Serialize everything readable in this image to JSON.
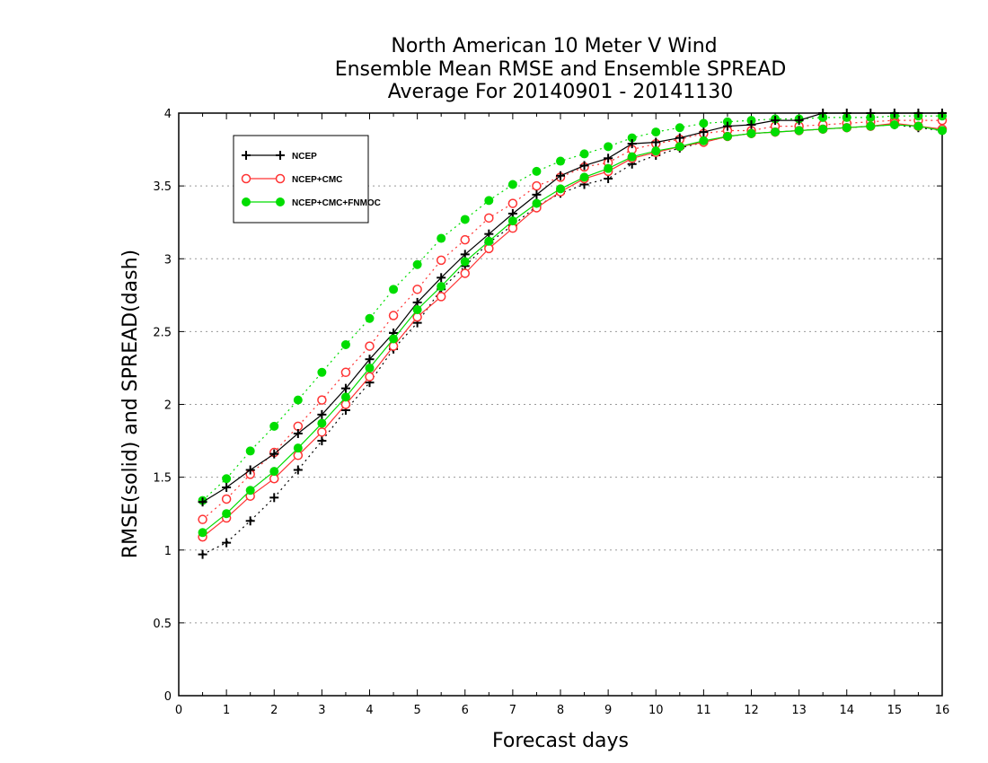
{
  "chart_data": {
    "type": "line",
    "title_lines": [
      "North American 10 Meter V Wind",
      "Ensemble Mean RMSE and Ensemble SPREAD",
      "Average For 20140901 - 20141130"
    ],
    "xlabel": "Forecast days",
    "ylabel": "RMSE(solid) and SPREAD(dash)",
    "xlim": [
      0,
      16
    ],
    "ylim": [
      0,
      4
    ],
    "xticks": [
      "0",
      "1",
      "2",
      "3",
      "4",
      "5",
      "6",
      "7",
      "8",
      "9",
      "10",
      "11",
      "12",
      "13",
      "14",
      "15",
      "16"
    ],
    "yticks": [
      "0",
      "0.5",
      "1",
      "1.5",
      "2",
      "2.5",
      "3",
      "3.5",
      "4"
    ],
    "grid": "horizontal-dotted",
    "legend_position": "top-left",
    "x": [
      0.5,
      1,
      1.5,
      2,
      2.5,
      3,
      3.5,
      4,
      4.5,
      5,
      5.5,
      6,
      6.5,
      7,
      7.5,
      8,
      8.5,
      9,
      9.5,
      10,
      10.5,
      11,
      11.5,
      12,
      12.5,
      13,
      13.5,
      14,
      14.5,
      15,
      15.5,
      16
    ],
    "series": [
      {
        "name": "NCEP",
        "color": "#000000",
        "marker": "plus",
        "rmse": [
          1.33,
          1.43,
          1.55,
          1.66,
          1.8,
          1.93,
          2.11,
          2.31,
          2.49,
          2.7,
          2.87,
          3.03,
          3.17,
          3.31,
          3.44,
          3.57,
          3.64,
          3.69,
          3.79,
          3.8,
          3.83,
          3.87,
          3.91,
          3.92,
          3.95,
          3.95,
          4.0,
          4.0,
          4.0,
          4.0,
          4.0,
          4.0
        ],
        "spread": [
          0.97,
          1.05,
          1.2,
          1.36,
          1.55,
          1.75,
          1.96,
          2.15,
          2.38,
          2.56,
          2.79,
          2.95,
          3.11,
          3.23,
          3.36,
          3.45,
          3.51,
          3.55,
          3.65,
          3.71,
          3.76,
          3.8,
          3.84,
          3.86,
          3.87,
          3.88,
          3.89,
          3.9,
          3.91,
          3.92,
          3.9,
          3.88
        ]
      },
      {
        "name": "NCEP+CMC",
        "color": "#ff3333",
        "marker": "open-circle",
        "rmse": [
          1.09,
          1.22,
          1.37,
          1.49,
          1.65,
          1.81,
          2.0,
          2.19,
          2.4,
          2.6,
          2.74,
          2.9,
          3.07,
          3.21,
          3.35,
          3.46,
          3.55,
          3.6,
          3.69,
          3.73,
          3.77,
          3.8,
          3.84,
          3.86,
          3.87,
          3.88,
          3.89,
          3.9,
          3.91,
          3.93,
          3.91,
          3.89
        ],
        "spread": [
          1.21,
          1.35,
          1.52,
          1.67,
          1.85,
          2.03,
          2.22,
          2.4,
          2.61,
          2.79,
          2.99,
          3.13,
          3.28,
          3.38,
          3.5,
          3.56,
          3.63,
          3.66,
          3.75,
          3.79,
          3.82,
          3.86,
          3.88,
          3.88,
          3.91,
          3.91,
          3.92,
          3.93,
          3.94,
          3.95,
          3.95,
          3.95
        ]
      },
      {
        "name": "NCEP+CMC+FNMOC",
        "color": "#00dd00",
        "marker": "filled-circle",
        "rmse": [
          1.12,
          1.25,
          1.41,
          1.54,
          1.7,
          1.87,
          2.05,
          2.25,
          2.45,
          2.65,
          2.81,
          2.98,
          3.12,
          3.26,
          3.38,
          3.48,
          3.56,
          3.62,
          3.7,
          3.74,
          3.77,
          3.81,
          3.84,
          3.86,
          3.87,
          3.88,
          3.89,
          3.9,
          3.91,
          3.92,
          3.91,
          3.88
        ],
        "spread": [
          1.34,
          1.49,
          1.68,
          1.85,
          2.03,
          2.22,
          2.41,
          2.59,
          2.79,
          2.96,
          3.14,
          3.27,
          3.4,
          3.51,
          3.6,
          3.67,
          3.72,
          3.77,
          3.83,
          3.87,
          3.9,
          3.93,
          3.94,
          3.95,
          3.96,
          3.96,
          3.97,
          3.97,
          3.97,
          3.98,
          3.98,
          3.98
        ]
      }
    ]
  }
}
